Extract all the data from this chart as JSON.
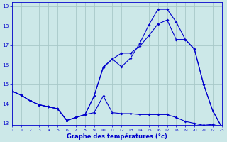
{
  "xlabel": "Graphe des températures (°c)",
  "bg_color": "#cce8e8",
  "grid_color": "#a8c8c8",
  "line_color": "#0000cc",
  "xlim": [
    0,
    23
  ],
  "ylim": [
    12.9,
    19.2
  ],
  "xtick_vals": [
    0,
    1,
    2,
    3,
    4,
    5,
    6,
    7,
    8,
    9,
    10,
    11,
    12,
    13,
    14,
    15,
    16,
    17,
    18,
    19,
    20,
    21,
    22,
    23
  ],
  "ytick_vals": [
    13,
    14,
    15,
    16,
    17,
    18,
    19
  ],
  "line1_x": [
    0,
    1,
    2,
    3,
    4,
    5,
    6,
    7,
    8,
    9,
    10,
    11,
    12,
    13,
    14,
    15,
    16,
    17,
    18,
    19,
    20,
    21,
    22,
    23
  ],
  "line1_y": [
    14.65,
    14.45,
    14.15,
    13.95,
    13.85,
    13.75,
    13.15,
    13.3,
    13.45,
    13.55,
    14.4,
    13.55,
    13.5,
    13.5,
    13.45,
    13.45,
    13.45,
    13.45,
    13.3,
    13.1,
    13.0,
    12.9,
    12.95,
    12.8
  ],
  "line2_x": [
    0,
    1,
    2,
    3,
    4,
    5,
    6,
    7,
    8,
    9,
    10,
    11,
    12,
    13,
    14,
    15,
    16,
    17,
    18,
    19,
    20,
    21,
    22,
    23
  ],
  "line2_y": [
    14.65,
    14.45,
    14.15,
    13.95,
    13.85,
    13.75,
    13.15,
    13.3,
    13.45,
    14.4,
    15.9,
    16.3,
    16.6,
    16.6,
    16.95,
    17.5,
    18.1,
    18.3,
    17.3,
    17.3,
    16.8,
    15.0,
    13.65,
    12.8
  ],
  "line3_x": [
    0,
    1,
    2,
    3,
    4,
    5,
    6,
    7,
    8,
    9,
    10,
    11,
    12,
    13,
    14,
    15,
    16,
    17,
    18,
    19,
    20,
    21,
    22,
    23
  ],
  "line3_y": [
    14.65,
    14.45,
    14.15,
    13.95,
    13.85,
    13.75,
    13.15,
    13.3,
    13.45,
    14.4,
    15.85,
    16.3,
    15.9,
    16.35,
    17.1,
    18.05,
    18.85,
    18.85,
    18.2,
    17.3,
    16.8,
    15.0,
    13.65,
    12.8
  ]
}
